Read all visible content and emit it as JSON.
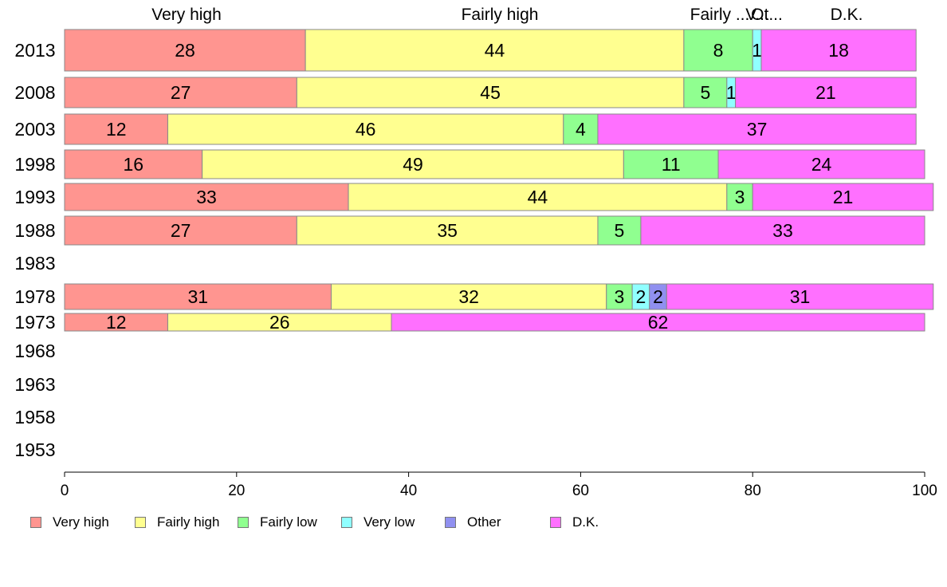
{
  "chart_data": {
    "type": "bar",
    "orientation": "horizontal",
    "stacked": true,
    "title": "",
    "xlabel": "",
    "ylabel": "",
    "xlim": [
      0,
      100
    ],
    "x_ticks": [
      0,
      20,
      40,
      60,
      80,
      100
    ],
    "categories": [
      "2013",
      "2008",
      "2003",
      "1998",
      "1993",
      "1988",
      "1983",
      "1978",
      "1973",
      "1968",
      "1963",
      "1958",
      "1953"
    ],
    "top_labels": [
      "Very high",
      "Fairly high",
      "Fairly ...",
      "V...",
      "Ot...",
      "D.K."
    ],
    "series": [
      {
        "name": "Very high",
        "color": "#ff9590",
        "values": [
          28,
          27,
          12,
          16,
          33,
          27,
          null,
          31,
          12,
          null,
          null,
          null,
          null
        ]
      },
      {
        "name": "Fairly high",
        "color": "#ffff90",
        "values": [
          44,
          45,
          46,
          49,
          44,
          35,
          null,
          32,
          26,
          null,
          null,
          null,
          null
        ]
      },
      {
        "name": "Fairly low",
        "color": "#90ff90",
        "values": [
          8,
          5,
          4,
          11,
          3,
          5,
          null,
          3,
          0,
          null,
          null,
          null,
          null
        ]
      },
      {
        "name": "Very low",
        "color": "#90ffff",
        "values": [
          1,
          1,
          0,
          0,
          0,
          0,
          null,
          2,
          0,
          null,
          null,
          null,
          null
        ]
      },
      {
        "name": "Other",
        "color": "#9090f0",
        "values": [
          0,
          0,
          0,
          0,
          0,
          0,
          null,
          2,
          0,
          null,
          null,
          null,
          null
        ]
      },
      {
        "name": "D.K.",
        "color": "#ff70ff",
        "values": [
          18,
          21,
          37,
          24,
          21,
          33,
          null,
          31,
          62,
          null,
          null,
          null,
          null
        ]
      }
    ],
    "legend_position": "bottom-left",
    "grid": false
  }
}
